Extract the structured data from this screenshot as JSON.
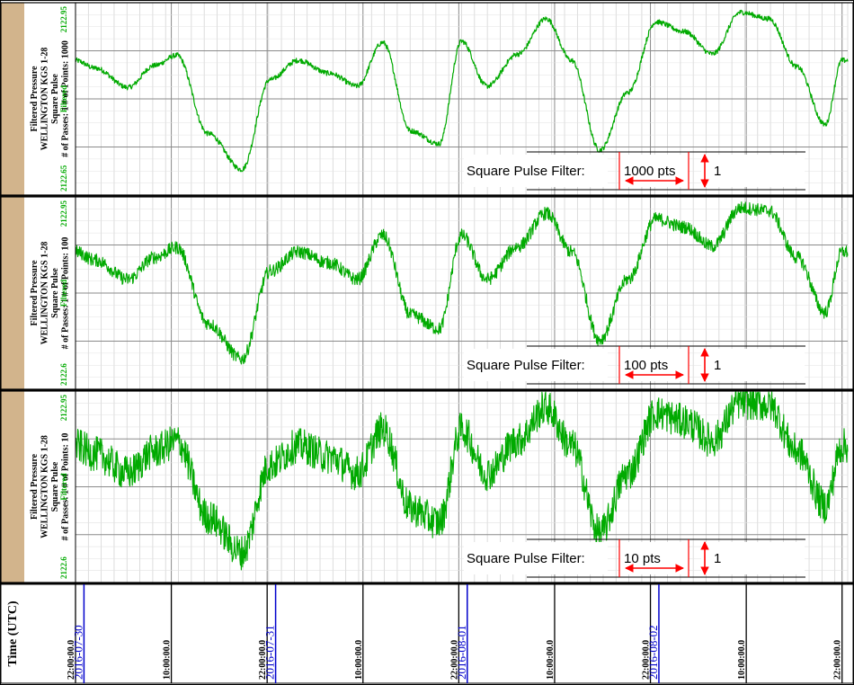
{
  "chart_data": {
    "type": "line",
    "x_unit": "time (UTC)",
    "panels": [
      {
        "label_lines": [
          "Filtered Pressure",
          "WELLINGTON KGS 1-28",
          "Square Pulse",
          "# of Passes: 1  # of Points: 1000"
        ],
        "ymax_label": "2122.95",
        "ymin_label": "2122.65",
        "ylim": [
          2122.65,
          2122.95
        ],
        "curve_label": "Filtered",
        "filter_label": "Square Pulse Filter:",
        "filter_points": "1000 pts",
        "filter_passes": "1",
        "noise": 0.004,
        "series": [
          {
            "name": "Filtered",
            "color": "#00aa00",
            "x": [
              0,
              0.35,
              0.93,
              1.4,
              1.8,
              2.35,
              2.95,
              3.45,
              3.95,
              4.5,
              5.0,
              5.45,
              5.95,
              6.45,
              6.85,
              7.3,
              7.85,
              8.35,
              8.8,
              9.3,
              9.8,
              10.3,
              10.8,
              11.3,
              11.8,
              12.3,
              12.8,
              13.3,
              13.6
            ],
            "y": [
              2122.86,
              2122.848,
              2122.818,
              2122.852,
              2122.868,
              2122.746,
              2122.69,
              2122.83,
              2122.86,
              2122.84,
              2122.82,
              2122.888,
              2122.75,
              2122.73,
              2122.89,
              2122.82,
              2122.87,
              2122.925,
              2122.86,
              2122.72,
              2122.81,
              2122.92,
              2122.905,
              2122.87,
              2122.935,
              2122.925,
              2122.85,
              2122.76,
              2122.86
            ]
          }
        ]
      },
      {
        "label_lines": [
          "Filtered Pressure",
          "WELLINGTON KGS 1-28",
          "Square Pulse",
          "# of Passes: 1  # of Points: 100"
        ],
        "ymax_label": "2122.95",
        "ymin_label": "2122.6",
        "ylim": [
          2122.6,
          2122.95
        ],
        "curve_label": "Filtered",
        "filter_label": "Square Pulse Filter:",
        "filter_points": "100 pts",
        "filter_passes": "1",
        "noise": 0.012,
        "series": [
          {
            "name": "Filtered",
            "color": "#00aa00",
            "x": [
              0,
              0.35,
              0.93,
              1.4,
              1.8,
              2.35,
              2.95,
              3.45,
              3.95,
              4.5,
              5.0,
              5.45,
              5.95,
              6.45,
              6.85,
              7.3,
              7.85,
              8.35,
              8.8,
              9.3,
              9.8,
              10.3,
              10.8,
              11.3,
              11.8,
              12.3,
              12.8,
              13.3,
              13.6
            ],
            "y": [
              2122.85,
              2122.835,
              2122.8,
              2122.84,
              2122.858,
              2122.72,
              2122.655,
              2122.815,
              2122.85,
              2122.83,
              2122.8,
              2122.88,
              2122.735,
              2122.71,
              2122.88,
              2122.8,
              2122.86,
              2122.92,
              2122.85,
              2122.69,
              2122.8,
              2122.91,
              2122.895,
              2122.86,
              2122.93,
              2122.925,
              2122.84,
              2122.74,
              2122.85
            ]
          }
        ]
      },
      {
        "label_lines": [
          "Filtered Pressure",
          "WELLINGTON KGS 1-28",
          "Square Pulse",
          "# of Passes: 1  # of Points: 10"
        ],
        "ymax_label": "2122.95",
        "ymin_label": "2122.6",
        "ylim": [
          2122.6,
          2122.95
        ],
        "curve_label": "Filtered",
        "filter_label": "Square Pulse Filter:",
        "filter_points": "10 pts",
        "filter_passes": "1",
        "noise": 0.032,
        "series": [
          {
            "name": "Filtered",
            "color": "#00aa00",
            "x": [
              0,
              0.35,
              0.93,
              1.4,
              1.8,
              2.35,
              2.95,
              3.45,
              3.95,
              4.5,
              5.0,
              5.45,
              5.95,
              6.45,
              6.85,
              7.3,
              7.85,
              8.35,
              8.8,
              9.3,
              9.8,
              10.3,
              10.8,
              11.3,
              11.8,
              12.3,
              12.8,
              13.3,
              13.6
            ],
            "y": [
              2122.85,
              2122.835,
              2122.8,
              2122.84,
              2122.858,
              2122.72,
              2122.655,
              2122.815,
              2122.85,
              2122.83,
              2122.8,
              2122.88,
              2122.735,
              2122.71,
              2122.88,
              2122.8,
              2122.86,
              2122.92,
              2122.85,
              2122.69,
              2122.8,
              2122.91,
              2122.895,
              2122.86,
              2122.93,
              2122.925,
              2122.84,
              2122.74,
              2122.85
            ]
          }
        ]
      }
    ],
    "time_axis": {
      "title": "Time (UTC)",
      "xlim": [
        0,
        13.7
      ],
      "major_ticks": [
        {
          "x": 0,
          "label": "22:00:00.0"
        },
        {
          "x": 1.7,
          "label": "10:00:00.0"
        },
        {
          "x": 3.4,
          "label": "22:00:00.0"
        },
        {
          "x": 5.1,
          "label": "10:00:00.0"
        },
        {
          "x": 6.8,
          "label": "22:00:00.0"
        },
        {
          "x": 8.5,
          "label": "10:00:00.0"
        },
        {
          "x": 10.2,
          "label": "22:00:00.0"
        },
        {
          "x": 11.9,
          "label": "10:00:00.0"
        },
        {
          "x": 13.6,
          "label": "22:00:00.0"
        }
      ],
      "date_ticks": [
        {
          "x": 0.15,
          "label": "2016-07-30"
        },
        {
          "x": 3.55,
          "label": "2016-07-31"
        },
        {
          "x": 6.95,
          "label": "2016-08-01"
        },
        {
          "x": 10.35,
          "label": "2016-08-02"
        }
      ]
    },
    "grid": true
  },
  "colors": {
    "label_column": "#d2b48c",
    "curve": "#00aa00",
    "axis_labels": "#00aa00",
    "date_labels": "#0000cc",
    "annotation": "#ff0000"
  }
}
